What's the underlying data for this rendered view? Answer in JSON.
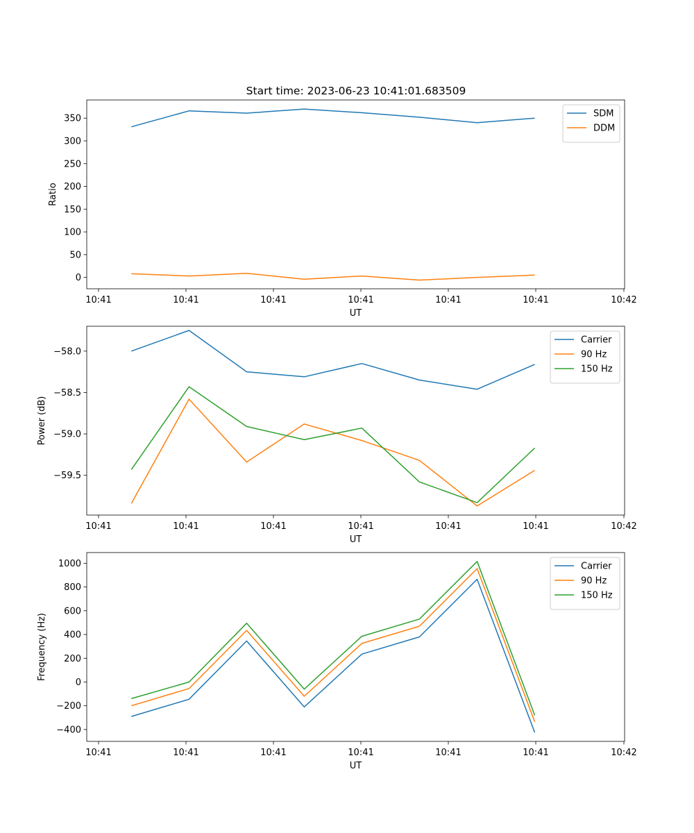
{
  "title": "Start time: 2023-06-23 10:41:01.683509",
  "x_tick_labels": [
    "10:41",
    "10:41",
    "10:41",
    "10:41",
    "10:41",
    "10:41",
    "10:41"
  ],
  "x_tick_last": "10:42",
  "chart_data": [
    {
      "type": "line",
      "title": "Start time: 2023-06-23 10:41:01.683509",
      "xlabel": "UT",
      "ylabel": "Ratio",
      "x": [
        1,
        2,
        3,
        4,
        5,
        6,
        7,
        8
      ],
      "xlim": [
        0.225,
        9.56
      ],
      "ylim": [
        -25,
        390
      ],
      "yticks": [
        0,
        50,
        100,
        150,
        200,
        250,
        300,
        350
      ],
      "grid": false,
      "legend_position": "top-right",
      "series": [
        {
          "name": "SDM",
          "color": "#1f77b4",
          "values": [
            331,
            366,
            361,
            370,
            362,
            352,
            340,
            350
          ]
        },
        {
          "name": "DDM",
          "color": "#ff7f0e",
          "values": [
            8,
            3,
            9,
            -4,
            3,
            -6,
            0,
            5
          ]
        }
      ]
    },
    {
      "type": "line",
      "xlabel": "UT",
      "ylabel": "Power (dB)",
      "x": [
        1,
        2,
        3,
        4,
        5,
        6,
        7,
        8
      ],
      "xlim": [
        0.225,
        9.56
      ],
      "ylim": [
        -59.98,
        -57.7
      ],
      "yticks": [
        -58.0,
        -58.5,
        -59.0,
        -59.5
      ],
      "ytick_labels": [
        "−58.0",
        "−58.5",
        "−59.0",
        "−59.5"
      ],
      "grid": false,
      "legend_position": "top-right",
      "series": [
        {
          "name": "Carrier",
          "color": "#1f77b4",
          "values": [
            -58.0,
            -57.75,
            -58.25,
            -58.31,
            -58.15,
            -58.35,
            -58.46,
            -58.16
          ]
        },
        {
          "name": "90 Hz",
          "color": "#ff7f0e",
          "values": [
            -59.84,
            -58.58,
            -59.34,
            -58.88,
            -59.08,
            -59.32,
            -59.87,
            -59.44
          ]
        },
        {
          "name": "150 Hz",
          "color": "#2ca02c",
          "values": [
            -59.43,
            -58.43,
            -58.91,
            -59.07,
            -58.93,
            -59.58,
            -59.83,
            -59.17
          ]
        }
      ]
    },
    {
      "type": "line",
      "xlabel": "UT",
      "ylabel": "Frequency (Hz)",
      "x": [
        1,
        2,
        3,
        4,
        5,
        6,
        7,
        8
      ],
      "xlim": [
        0.225,
        9.56
      ],
      "ylim": [
        -500,
        1090
      ],
      "yticks": [
        1000,
        800,
        600,
        400,
        200,
        0,
        -200,
        -400
      ],
      "ytick_labels": [
        "1000",
        "800",
        "600",
        "400",
        "200",
        "0",
        "−200",
        "−400"
      ],
      "grid": false,
      "legend_position": "top-right",
      "series": [
        {
          "name": "Carrier",
          "color": "#1f77b4",
          "values": [
            -290,
            -145,
            345,
            -210,
            235,
            380,
            865,
            -425
          ]
        },
        {
          "name": "90 Hz",
          "color": "#ff7f0e",
          "values": [
            -200,
            -55,
            435,
            -120,
            325,
            470,
            955,
            -335
          ]
        },
        {
          "name": "150 Hz",
          "color": "#2ca02c",
          "values": [
            -140,
            0,
            495,
            -60,
            385,
            530,
            1015,
            -280
          ]
        }
      ]
    }
  ]
}
